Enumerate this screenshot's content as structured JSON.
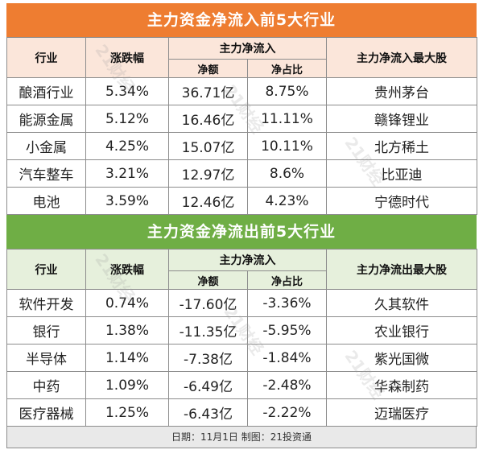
{
  "inflow": {
    "title": "主力资金净流入前5大行业",
    "headers": {
      "industry": "行业",
      "change": "涨跌幅",
      "net_flow": "主力净流入",
      "amount": "净额",
      "ratio": "净占比",
      "top_stock": "主力净流入最大股"
    },
    "rows": [
      {
        "industry": "酿酒行业",
        "change": "5.34%",
        "amount": "36.71亿",
        "ratio": "8.75%",
        "stock": "贵州茅台"
      },
      {
        "industry": "能源金属",
        "change": "5.12%",
        "amount": "16.46亿",
        "ratio": "11.11%",
        "stock": "赣锋锂业"
      },
      {
        "industry": "小金属",
        "change": "4.25%",
        "amount": "15.07亿",
        "ratio": "10.11%",
        "stock": "北方稀土"
      },
      {
        "industry": "汽车整车",
        "change": "3.21%",
        "amount": "12.97亿",
        "ratio": "8.6%",
        "stock": "比亚迪"
      },
      {
        "industry": "电池",
        "change": "3.59%",
        "amount": "12.46亿",
        "ratio": "4.23%",
        "stock": "宁德时代"
      }
    ]
  },
  "outflow": {
    "title": "主力资金净流出前5大行业",
    "headers": {
      "industry": "行业",
      "change": "涨跌幅",
      "net_flow": "主力净流入",
      "amount": "净额",
      "ratio": "净占比",
      "top_stock": "主力净流出最大股"
    },
    "rows": [
      {
        "industry": "软件开发",
        "change": "0.74%",
        "amount": "-17.60亿",
        "ratio": "-3.36%",
        "stock": "久其软件"
      },
      {
        "industry": "银行",
        "change": "1.38%",
        "amount": "-11.35亿",
        "ratio": "-5.95%",
        "stock": "农业银行"
      },
      {
        "industry": "半导体",
        "change": "1.14%",
        "amount": "-7.38亿",
        "ratio": "-1.84%",
        "stock": "紫光国微"
      },
      {
        "industry": "中药",
        "change": "1.09%",
        "amount": "-6.49亿",
        "ratio": "-2.48%",
        "stock": "华森制药"
      },
      {
        "industry": "医疗器械",
        "change": "1.25%",
        "amount": "-6.43亿",
        "ratio": "-2.22%",
        "stock": "迈瑞医疗"
      }
    ]
  },
  "footer": "日期：11月1日 制图：21投资通",
  "watermark": "21财经",
  "colors": {
    "inflow_banner": "#ee7d31",
    "outflow_banner": "#6fae45"
  }
}
